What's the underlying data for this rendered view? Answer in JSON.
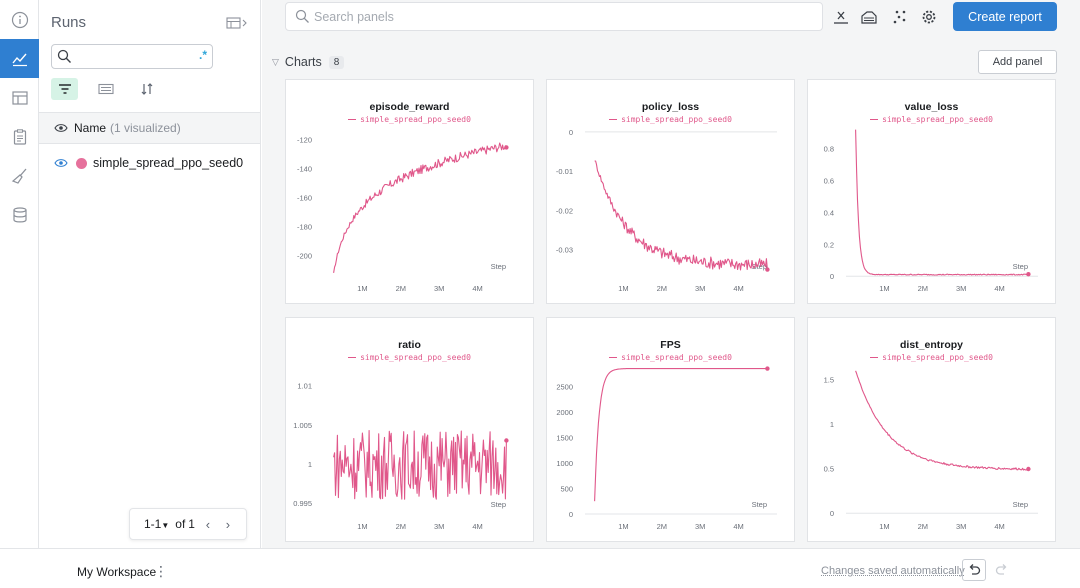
{
  "rail": {
    "items": [
      {
        "name": "info-icon",
        "active": false
      },
      {
        "name": "chart-icon",
        "active": true
      },
      {
        "name": "table-icon",
        "active": false
      },
      {
        "name": "report-icon",
        "active": false
      },
      {
        "name": "sweep-broom-icon",
        "active": false
      },
      {
        "name": "artifacts-database-icon",
        "active": false
      }
    ]
  },
  "runs_panel": {
    "title": "Runs",
    "search_value": "",
    "regex_label": ".*",
    "header_label": "Name",
    "header_sub": "(1 visualized)",
    "runs": [
      {
        "name": "simple_spread_ppo_seed0",
        "color": "#e6719c"
      }
    ],
    "pager": {
      "range": "1-1",
      "of_label": "of",
      "total": "1"
    }
  },
  "toolbar": {
    "search_placeholder": "Search panels",
    "create_report_label": "Create report"
  },
  "section": {
    "title": "Charts",
    "count": "8",
    "add_panel_label": "Add panel"
  },
  "colors": {
    "series": "#e0578a",
    "accent": "#2f7fd1"
  },
  "chart_data": [
    {
      "type": "line",
      "title": "episode_reward",
      "xlabel": "Step",
      "xticks": [
        "1M",
        "2M",
        "3M",
        "4M"
      ],
      "yticks": [
        "-120",
        "-140",
        "-160",
        "-180",
        "-200"
      ],
      "ylim": [
        -215,
        -112
      ],
      "xlim": [
        0,
        5000000
      ],
      "series": [
        {
          "name": "simple_spread_ppo_seed0",
          "shape": "log_rise",
          "start": -213,
          "end": -124,
          "noise": 3
        }
      ]
    },
    {
      "type": "line",
      "title": "policy_loss",
      "xlabel": "Step",
      "xticks": [
        "1M",
        "2M",
        "3M",
        "4M"
      ],
      "yticks": [
        "0",
        "-0.01",
        "-0.02",
        "-0.03"
      ],
      "ylim": [
        -0.037,
        0.001
      ],
      "xlim": [
        0,
        5000000
      ],
      "series": [
        {
          "name": "simple_spread_ppo_seed0",
          "shape": "decay",
          "start": -0.007,
          "end": -0.034,
          "noise": 0.0016
        }
      ]
    },
    {
      "type": "line",
      "title": "value_loss",
      "xlabel": "Step",
      "xticks": [
        "1M",
        "2M",
        "3M",
        "4M"
      ],
      "yticks": [
        "0.8",
        "0.6",
        "0.4",
        "0.2",
        "0"
      ],
      "ylim": [
        -0.005,
        0.93
      ],
      "xlim": [
        0,
        5000000
      ],
      "series": [
        {
          "name": "simple_spread_ppo_seed0",
          "shape": "spike_decay",
          "start": 0.92,
          "end": 0.01,
          "noise": 0.003
        }
      ]
    },
    {
      "type": "line",
      "title": "ratio",
      "xlabel": "Step",
      "xticks": [
        "1M",
        "2M",
        "3M",
        "4M"
      ],
      "yticks": [
        "1.01",
        "1.005",
        "1",
        "0.995"
      ],
      "ylim": [
        0.9935,
        1.0125
      ],
      "xlim": [
        0,
        5000000
      ],
      "series": [
        {
          "name": "simple_spread_ppo_seed0",
          "shape": "noise",
          "start": 1.0,
          "end": 1.0,
          "noise": 0.0045
        }
      ]
    },
    {
      "type": "line",
      "title": "FPS",
      "xlabel": "Step",
      "xticks": [
        "1M",
        "2M",
        "3M",
        "4M"
      ],
      "yticks": [
        "2500",
        "2000",
        "1500",
        "1000",
        "500",
        "0"
      ],
      "ylim": [
        -20,
        2900
      ],
      "xlim": [
        0,
        5000000
      ],
      "series": [
        {
          "name": "simple_spread_ppo_seed0",
          "shape": "saturate",
          "start": 250,
          "end": 2850,
          "noise": 0
        }
      ]
    },
    {
      "type": "line",
      "title": "dist_entropy",
      "xlabel": "Step",
      "xticks": [
        "1M",
        "2M",
        "3M",
        "4M"
      ],
      "yticks": [
        "1.5",
        "1",
        "0.5",
        "0"
      ],
      "ylim": [
        -0.02,
        1.65
      ],
      "xlim": [
        0,
        5000000
      ],
      "series": [
        {
          "name": "simple_spread_ppo_seed0",
          "shape": "decay",
          "start": 1.6,
          "end": 0.49,
          "noise": 0.012
        }
      ]
    }
  ],
  "footer": {
    "workspace_name": "My Workspace",
    "saved_label": "Changes saved automatically"
  }
}
